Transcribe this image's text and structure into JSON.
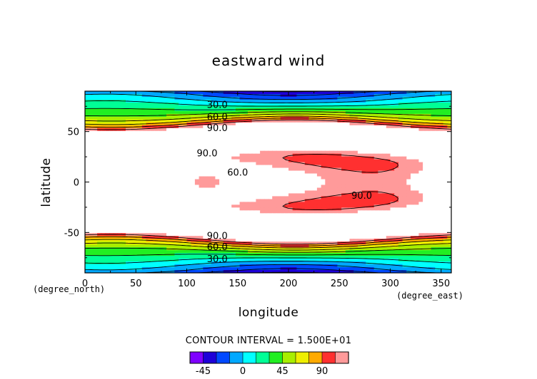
{
  "chart_data": {
    "type": "heatmap",
    "title": "eastward wind",
    "xlabel": "longitude",
    "ylabel": "latitude",
    "x_unit": "(degree_east)",
    "y_unit": "(degree_north)",
    "xlim": [
      0,
      360
    ],
    "ylim": [
      -90,
      90
    ],
    "x_ticks": [
      {
        "value": 0,
        "label": "0"
      },
      {
        "value": 50,
        "label": "50"
      },
      {
        "value": 100,
        "label": "100"
      },
      {
        "value": 150,
        "label": "150"
      },
      {
        "value": 200,
        "label": "200"
      },
      {
        "value": 250,
        "label": "250"
      },
      {
        "value": 300,
        "label": "300"
      },
      {
        "value": 350,
        "label": "350"
      }
    ],
    "y_ticks": [
      {
        "value": 50,
        "label": "50"
      },
      {
        "value": 0,
        "label": "0"
      },
      {
        "value": -50,
        "label": "-50"
      }
    ],
    "contour_interval_text": "CONTOUR INTERVAL = 1.500E+01",
    "contour_labels": [
      {
        "text": "30.0",
        "x": 130,
        "y": 77
      },
      {
        "text": "60.0",
        "x": 130,
        "y": 65
      },
      {
        "text": "90.0",
        "x": 130,
        "y": 54
      },
      {
        "text": "90.0",
        "x": 120,
        "y": 29
      },
      {
        "text": "60.0",
        "x": 150,
        "y": 10
      },
      {
        "text": "90.0",
        "x": 272,
        "y": -13
      },
      {
        "text": "90.0",
        "x": 130,
        "y": -53
      },
      {
        "text": "60.0",
        "x": 130,
        "y": -64
      },
      {
        "text": "30.0",
        "x": 130,
        "y": -76
      }
    ],
    "colorbar": {
      "levels": [
        -60,
        -45,
        -30,
        -15,
        0,
        15,
        30,
        45,
        60,
        75,
        90,
        105
      ],
      "tick_labels": [
        {
          "value": -45,
          "label": "-45"
        },
        {
          "value": 0,
          "label": "0"
        },
        {
          "value": 45,
          "label": "45"
        },
        {
          "value": 90,
          "label": "90"
        }
      ],
      "colors": [
        "#7f00ff",
        "#1e00d8",
        "#0048ff",
        "#00a8ff",
        "#00ffff",
        "#00ff96",
        "#22ee22",
        "#a8ee00",
        "#eeee00",
        "#ffaa00",
        "#ff3030",
        "#ff9a9a"
      ]
    },
    "grid": false
  }
}
